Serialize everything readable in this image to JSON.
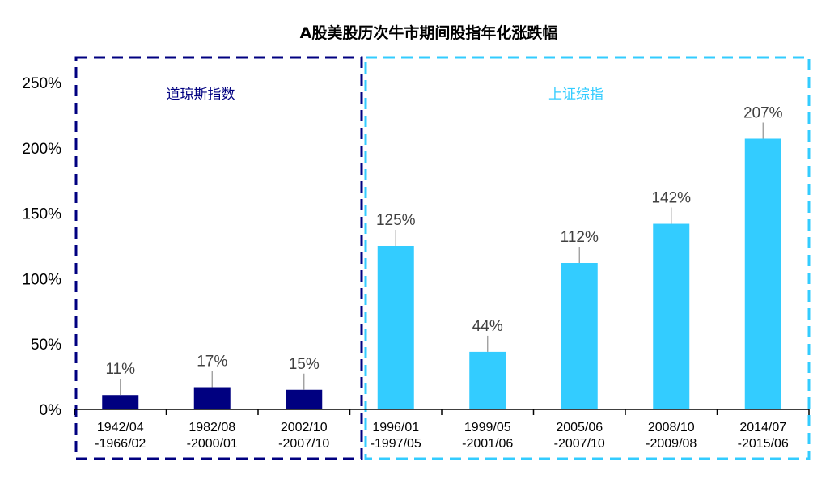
{
  "chart_data": {
    "type": "bar",
    "title": "A股美股历次牛市期间股指年化涨跌幅",
    "xlabel": "",
    "ylabel": "",
    "ylim": [
      0,
      2.7
    ],
    "yticks": [
      {
        "value": 0,
        "label": "0%"
      },
      {
        "value": 0.5,
        "label": "50%"
      },
      {
        "value": 1.0,
        "label": "100%"
      },
      {
        "value": 1.5,
        "label": "150%"
      },
      {
        "value": 2.0,
        "label": "200%"
      },
      {
        "value": 2.5,
        "label": "250%"
      }
    ],
    "grid": false,
    "categories": [
      [
        "1942/04",
        "-1966/02"
      ],
      [
        "1982/08",
        "-2000/01"
      ],
      [
        "2002/10",
        "-2007/10"
      ],
      [
        "1996/01",
        "-1997/05"
      ],
      [
        "1999/05",
        "-2001/06"
      ],
      [
        "2005/06",
        "-2007/10"
      ],
      [
        "2008/10",
        "-2009/08"
      ],
      [
        "2014/07",
        "-2015/06"
      ]
    ],
    "groups": [
      {
        "name": "道琼斯指数",
        "color": "#000080",
        "start": 0,
        "end": 2
      },
      {
        "name": "上证综指",
        "color": "#33CCFF",
        "start": 3,
        "end": 7
      }
    ],
    "values": [
      0.11,
      0.17,
      0.15,
      1.25,
      0.44,
      1.12,
      1.42,
      2.07
    ],
    "value_labels": [
      "11%",
      "17%",
      "15%",
      "125%",
      "44%",
      "112%",
      "142%",
      "207%"
    ],
    "bar_colors": [
      "#000080",
      "#000080",
      "#000080",
      "#33CCFF",
      "#33CCFF",
      "#33CCFF",
      "#33CCFF",
      "#33CCFF"
    ]
  }
}
